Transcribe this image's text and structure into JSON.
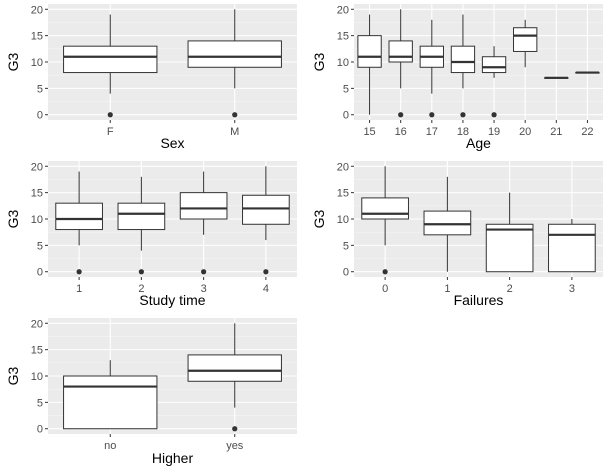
{
  "chart_data": [
    {
      "type": "boxplot",
      "xlabel": "Sex",
      "ylabel": "G3",
      "ylim": [
        -1,
        21
      ],
      "yticks": [
        0,
        5,
        10,
        15,
        20
      ],
      "grid": true,
      "categories": [
        "F",
        "M"
      ],
      "boxes": [
        {
          "min": 4,
          "q1": 8,
          "median": 11,
          "q3": 13,
          "max": 19,
          "outliers": [
            0
          ]
        },
        {
          "min": 5,
          "q1": 9,
          "median": 11,
          "q3": 14,
          "max": 20,
          "outliers": [
            0
          ]
        }
      ]
    },
    {
      "type": "boxplot",
      "xlabel": "Age",
      "ylabel": "G3",
      "ylim": [
        -1,
        21
      ],
      "yticks": [
        0,
        5,
        10,
        15,
        20
      ],
      "grid": true,
      "categories": [
        "15",
        "16",
        "17",
        "18",
        "19",
        "20",
        "21",
        "22"
      ],
      "boxes": [
        {
          "min": 0,
          "q1": 9,
          "median": 11,
          "q3": 15,
          "max": 19,
          "outliers": []
        },
        {
          "min": 5,
          "q1": 10,
          "median": 11,
          "q3": 14,
          "max": 20,
          "outliers": [
            0
          ]
        },
        {
          "min": 4,
          "q1": 9,
          "median": 11,
          "q3": 13,
          "max": 18,
          "outliers": [
            0
          ]
        },
        {
          "min": 5,
          "q1": 8,
          "median": 10,
          "q3": 13,
          "max": 19,
          "outliers": [
            0
          ]
        },
        {
          "min": 7,
          "q1": 8,
          "median": 9,
          "q3": 11,
          "max": 13,
          "outliers": [
            0
          ]
        },
        {
          "min": 9,
          "q1": 12,
          "median": 15,
          "q3": 16.5,
          "max": 18,
          "outliers": []
        },
        {
          "min": 7,
          "q1": 7,
          "median": 7,
          "q3": 7,
          "max": 7,
          "outliers": []
        },
        {
          "min": 8,
          "q1": 8,
          "median": 8,
          "q3": 8,
          "max": 8,
          "outliers": []
        }
      ]
    },
    {
      "type": "boxplot",
      "xlabel": "Study time",
      "ylabel": "G3",
      "ylim": [
        -1,
        21
      ],
      "yticks": [
        0,
        5,
        10,
        15,
        20
      ],
      "grid": true,
      "categories": [
        "1",
        "2",
        "3",
        "4"
      ],
      "boxes": [
        {
          "min": 5,
          "q1": 8,
          "median": 10,
          "q3": 13,
          "max": 19,
          "outliers": [
            0
          ]
        },
        {
          "min": 4,
          "q1": 8,
          "median": 11,
          "q3": 13,
          "max": 18,
          "outliers": [
            0
          ]
        },
        {
          "min": 7,
          "q1": 10,
          "median": 12,
          "q3": 15,
          "max": 19,
          "outliers": [
            0
          ]
        },
        {
          "min": 6,
          "q1": 9,
          "median": 12,
          "q3": 14.5,
          "max": 20,
          "outliers": [
            0
          ]
        }
      ]
    },
    {
      "type": "boxplot",
      "xlabel": "Failures",
      "ylabel": "G3",
      "ylim": [
        -1,
        21
      ],
      "yticks": [
        0,
        5,
        10,
        15,
        20
      ],
      "grid": true,
      "categories": [
        "0",
        "1",
        "2",
        "3"
      ],
      "boxes": [
        {
          "min": 5,
          "q1": 10,
          "median": 11,
          "q3": 14,
          "max": 20,
          "outliers": [
            0
          ]
        },
        {
          "min": 0,
          "q1": 7,
          "median": 9,
          "q3": 11.5,
          "max": 18,
          "outliers": []
        },
        {
          "min": 0,
          "q1": 0,
          "median": 8,
          "q3": 9,
          "max": 15,
          "outliers": []
        },
        {
          "min": 0,
          "q1": 0,
          "median": 7,
          "q3": 9,
          "max": 10,
          "outliers": []
        }
      ]
    },
    {
      "type": "boxplot",
      "xlabel": "Higher",
      "ylabel": "G3",
      "ylim": [
        -1,
        21
      ],
      "yticks": [
        0,
        5,
        10,
        15,
        20
      ],
      "grid": true,
      "categories": [
        "no",
        "yes"
      ],
      "boxes": [
        {
          "min": 0,
          "q1": 0,
          "median": 8,
          "q3": 10,
          "max": 13,
          "outliers": []
        },
        {
          "min": 4,
          "q1": 9,
          "median": 11,
          "q3": 14,
          "max": 20,
          "outliers": [
            0
          ]
        }
      ]
    }
  ]
}
